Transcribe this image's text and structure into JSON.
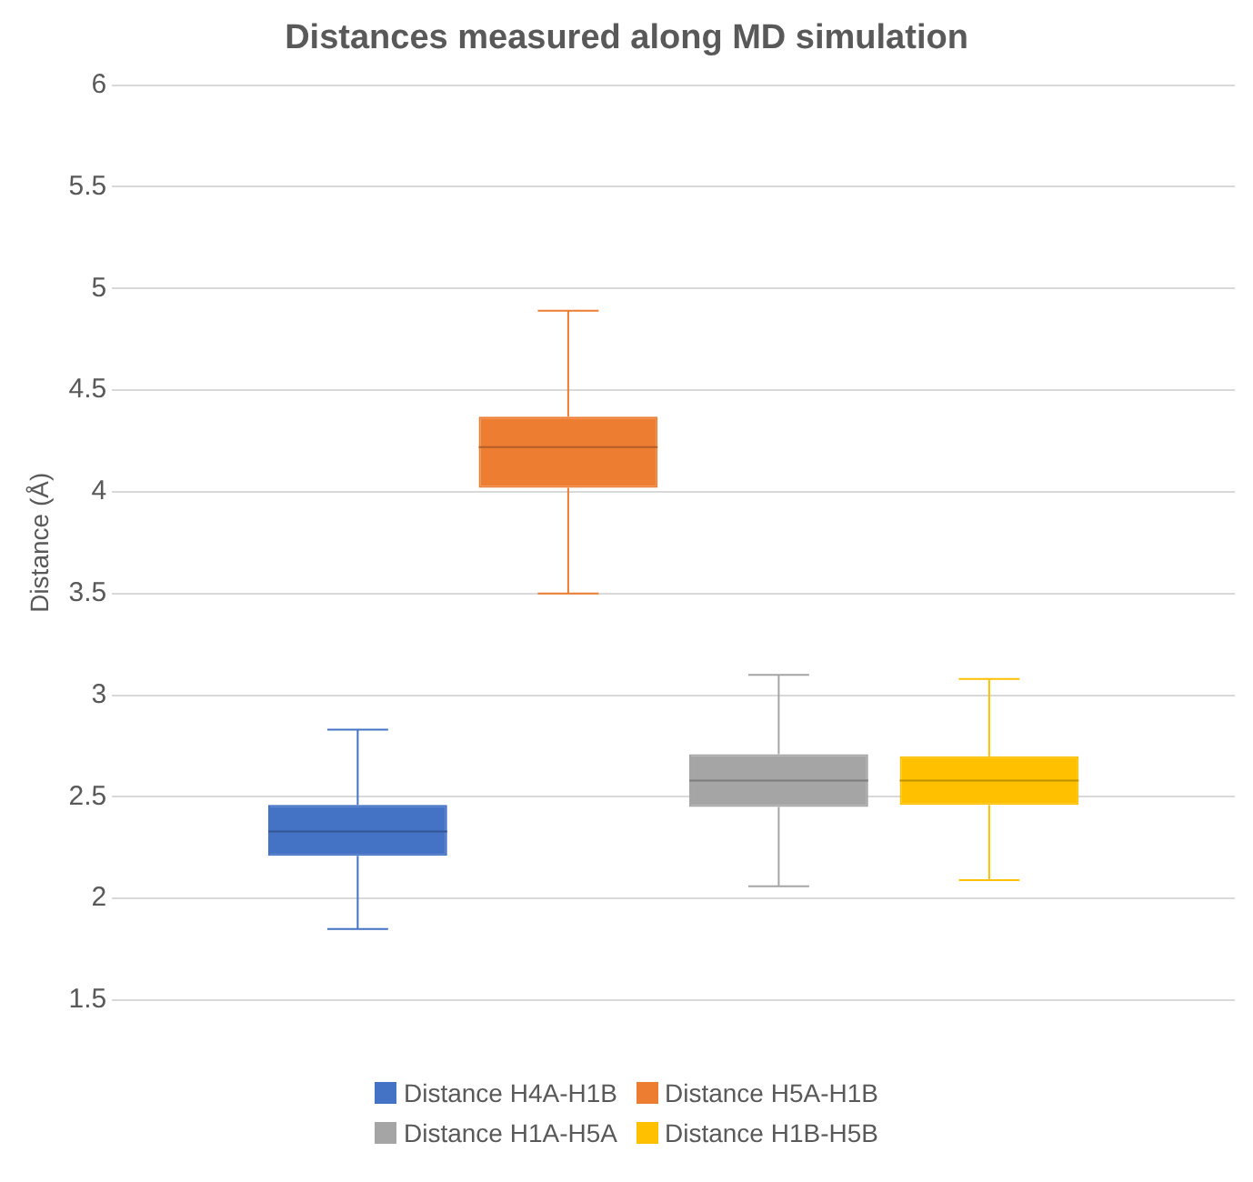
{
  "chart_data": {
    "type": "box",
    "title": "Distances measured along MD simulation",
    "ylabel": "Distance (Å)",
    "categories": [
      null
    ],
    "series": [
      {
        "name": "Distance H4A-H1B",
        "color": "#4472c4",
        "boxes": [
          {
            "low": 1.85,
            "q1": 2.21,
            "median": 2.33,
            "q3": 2.46,
            "high": 2.83
          }
        ]
      },
      {
        "name": "Distance H5A-H1B",
        "color": "#ed7d31",
        "boxes": [
          {
            "low": 3.5,
            "q1": 4.02,
            "median": 4.22,
            "q3": 4.37,
            "high": 4.89
          }
        ]
      },
      {
        "name": "Distance H1A-H5A",
        "color": "#a5a5a5",
        "boxes": [
          {
            "low": 2.06,
            "q1": 2.45,
            "median": 2.58,
            "q3": 2.71,
            "high": 3.1
          }
        ]
      },
      {
        "name": "Distance H1B-H5B",
        "color": "#ffc000",
        "boxes": [
          {
            "low": 2.09,
            "q1": 2.46,
            "median": 2.58,
            "q3": 2.7,
            "high": 3.08
          }
        ]
      }
    ],
    "ylim": [
      1.5,
      6
    ],
    "yticks": [
      1.5,
      2,
      2.5,
      3,
      3.5,
      4,
      4.5,
      5,
      5.5,
      6
    ],
    "grid": "y",
    "legend": "bottom"
  }
}
